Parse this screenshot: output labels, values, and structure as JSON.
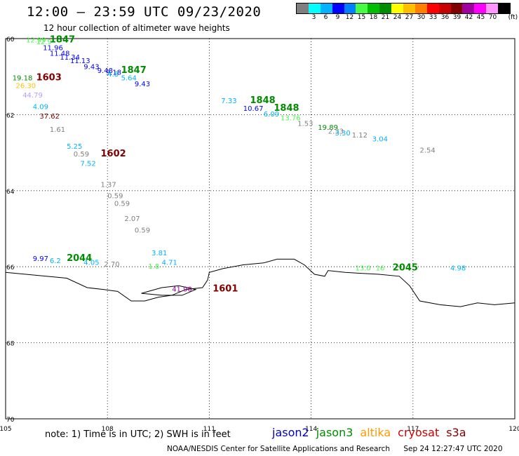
{
  "header": {
    "title": "12:00 – 23:59 UTC 09/23/2020",
    "subtitle": "12 hour collection of altimeter wave heights"
  },
  "legend": {
    "unit": "(ft)",
    "colors": [
      "#7f7f7f",
      "#00ffff",
      "#00b2ff",
      "#0000ff",
      "#007fff",
      "#46fa46",
      "#00bf00",
      "#008c00",
      "#ffff00",
      "#ffbf00",
      "#ff8000",
      "#ff0000",
      "#c80000",
      "#800000",
      "#a000a0",
      "#ff00ff",
      "#ff96ff",
      "#000000"
    ],
    "labels": [
      "3",
      "6",
      "9",
      "12",
      "15",
      "18",
      "21",
      "24",
      "27",
      "30",
      "33",
      "36",
      "39",
      "42",
      "45",
      "70"
    ]
  },
  "axes": {
    "x_ticks": [
      "105",
      "108",
      "111",
      "114",
      "117",
      "120"
    ],
    "y_ticks": [
      "60",
      "62",
      "64",
      "66",
      "68",
      "70"
    ]
  },
  "observations": [
    {
      "text": "12.99",
      "lon": 105.6,
      "lat": 60.1,
      "color": "#46fa46"
    },
    {
      "text": "12.9",
      "lon": 105.9,
      "lat": 60.15,
      "color": "#46fa46"
    },
    {
      "text": "1847",
      "lon": 106.3,
      "lat": 60.1,
      "color": "#008c00",
      "tag": true
    },
    {
      "text": "11.96",
      "lon": 106.1,
      "lat": 60.3,
      "color": "#0000ff"
    },
    {
      "text": "11.48",
      "lon": 106.3,
      "lat": 60.45,
      "color": "#0000ff"
    },
    {
      "text": "11.34",
      "lon": 106.6,
      "lat": 60.55,
      "color": "#0000ff"
    },
    {
      "text": "11.13",
      "lon": 106.9,
      "lat": 60.65,
      "color": "#0000ff"
    },
    {
      "text": "9.43",
      "lon": 107.3,
      "lat": 60.8,
      "color": "#0000ff"
    },
    {
      "text": "9.48",
      "lon": 107.7,
      "lat": 60.9,
      "color": "#0000ff"
    },
    {
      "text": "9.18",
      "lon": 107.95,
      "lat": 60.95,
      "color": "#0000ff"
    },
    {
      "text": "1847",
      "lon": 108.4,
      "lat": 60.9,
      "color": "#008c00",
      "tag": true
    },
    {
      "text": "4.8",
      "lon": 108.0,
      "lat": 61.0,
      "color": "#00b2ff"
    },
    {
      "text": "5.64",
      "lon": 108.4,
      "lat": 61.1,
      "color": "#00b2ff"
    },
    {
      "text": "9.43",
      "lon": 108.8,
      "lat": 61.25,
      "color": "#0000ff"
    },
    {
      "text": "19.18",
      "lon": 105.2,
      "lat": 61.1,
      "color": "#008c00"
    },
    {
      "text": "1603",
      "lon": 105.9,
      "lat": 61.1,
      "color": "#800000",
      "tag": true
    },
    {
      "text": "26.30",
      "lon": 105.3,
      "lat": 61.3,
      "color": "#ffbf00"
    },
    {
      "text": "44.79",
      "lon": 105.5,
      "lat": 61.55,
      "color": "#b0a0ff"
    },
    {
      "text": "4.09",
      "lon": 105.8,
      "lat": 61.85,
      "color": "#00b2ff"
    },
    {
      "text": "37.62",
      "lon": 106.0,
      "lat": 62.1,
      "color": "#800000"
    },
    {
      "text": "1.61",
      "lon": 106.3,
      "lat": 62.45,
      "color": "#7f7f7f"
    },
    {
      "text": "7.33",
      "lon": 111.35,
      "lat": 61.7,
      "color": "#00b2ff"
    },
    {
      "text": "1848",
      "lon": 112.2,
      "lat": 61.7,
      "color": "#008c00",
      "tag": true
    },
    {
      "text": "10.67",
      "lon": 112.0,
      "lat": 61.9,
      "color": "#0000ff"
    },
    {
      "text": "1848",
      "lon": 112.9,
      "lat": 61.9,
      "color": "#008c00",
      "tag": true
    },
    {
      "text": "6.09",
      "lon": 112.6,
      "lat": 62.05,
      "color": "#00b2ff"
    },
    {
      "text": "13.76",
      "lon": 113.1,
      "lat": 62.15,
      "color": "#46fa46"
    },
    {
      "text": "1.53",
      "lon": 113.6,
      "lat": 62.3,
      "color": "#7f7f7f"
    },
    {
      "text": "19.89",
      "lon": 114.2,
      "lat": 62.4,
      "color": "#008c00"
    },
    {
      "text": "2.33",
      "lon": 114.5,
      "lat": 62.5,
      "color": "#7f7f7f"
    },
    {
      "text": "3.30",
      "lon": 114.7,
      "lat": 62.55,
      "color": "#00b2ff"
    },
    {
      "text": "1.12",
      "lon": 115.2,
      "lat": 62.6,
      "color": "#7f7f7f"
    },
    {
      "text": "3.04",
      "lon": 115.8,
      "lat": 62.7,
      "color": "#00b2ff"
    },
    {
      "text": "2.54",
      "lon": 117.2,
      "lat": 63.0,
      "color": "#7f7f7f"
    },
    {
      "text": "5.25",
      "lon": 106.8,
      "lat": 62.9,
      "color": "#00b2ff"
    },
    {
      "text": "0.59",
      "lon": 107.0,
      "lat": 63.1,
      "color": "#7f7f7f"
    },
    {
      "text": "1602",
      "lon": 107.8,
      "lat": 63.1,
      "color": "#800000",
      "tag": true
    },
    {
      "text": "7.52",
      "lon": 107.2,
      "lat": 63.35,
      "color": "#00b2ff"
    },
    {
      "text": "1.37",
      "lon": 107.8,
      "lat": 63.9,
      "color": "#7f7f7f"
    },
    {
      "text": "0.59",
      "lon": 108.0,
      "lat": 64.2,
      "color": "#7f7f7f"
    },
    {
      "text": "0.59",
      "lon": 108.2,
      "lat": 64.4,
      "color": "#7f7f7f"
    },
    {
      "text": "2.07",
      "lon": 108.5,
      "lat": 64.8,
      "color": "#7f7f7f"
    },
    {
      "text": "0.59",
      "lon": 108.8,
      "lat": 65.1,
      "color": "#7f7f7f"
    },
    {
      "text": "9.97",
      "lon": 105.8,
      "lat": 65.85,
      "color": "#0000ff"
    },
    {
      "text": "6.2",
      "lon": 106.3,
      "lat": 65.9,
      "color": "#00b2ff"
    },
    {
      "text": "2044",
      "lon": 106.8,
      "lat": 65.85,
      "color": "#008c00",
      "tag": true
    },
    {
      "text": "4.05",
      "lon": 107.3,
      "lat": 65.95,
      "color": "#00b2ff"
    },
    {
      "text": "2.70",
      "lon": 107.9,
      "lat": 66.0,
      "color": "#7f7f7f"
    },
    {
      "text": "3.81",
      "lon": 109.3,
      "lat": 65.7,
      "color": "#00b2ff"
    },
    {
      "text": "4.71",
      "lon": 109.6,
      "lat": 65.95,
      "color": "#00b2ff"
    },
    {
      "text": "1.8",
      "lon": 109.2,
      "lat": 66.05,
      "color": "#46fa46"
    },
    {
      "text": "41.90",
      "lon": 109.9,
      "lat": 66.65,
      "color": "#a000a0"
    },
    {
      "text": "1601",
      "lon": 111.1,
      "lat": 66.65,
      "color": "#800000",
      "tag": true
    },
    {
      "text": "13.0",
      "lon": 115.3,
      "lat": 66.1,
      "color": "#46fa46"
    },
    {
      "text": "16",
      "lon": 115.9,
      "lat": 66.1,
      "color": "#46fa46"
    },
    {
      "text": "2045",
      "lon": 116.4,
      "lat": 66.1,
      "color": "#008c00",
      "tag": true
    },
    {
      "text": "4.98",
      "lon": 118.1,
      "lat": 66.1,
      "color": "#00b2ff"
    }
  ],
  "coastline": [
    [
      105.0,
      66.15
    ],
    [
      105.6,
      66.2
    ],
    [
      106.2,
      66.25
    ],
    [
      106.8,
      66.3
    ],
    [
      107.4,
      66.55
    ],
    [
      107.9,
      66.6
    ],
    [
      108.3,
      66.65
    ],
    [
      108.7,
      66.9
    ],
    [
      109.1,
      66.9
    ],
    [
      109.5,
      66.8
    ],
    [
      109.9,
      66.75
    ],
    [
      110.3,
      66.6
    ],
    [
      110.8,
      66.55
    ],
    [
      110.95,
      66.35
    ],
    [
      111.0,
      66.15
    ],
    [
      111.4,
      66.05
    ],
    [
      112.0,
      65.95
    ],
    [
      112.6,
      65.9
    ],
    [
      113.0,
      65.8
    ],
    [
      113.5,
      65.8
    ],
    [
      113.8,
      65.95
    ],
    [
      114.1,
      66.2
    ],
    [
      114.4,
      66.25
    ],
    [
      114.5,
      66.1
    ],
    [
      115.0,
      66.15
    ],
    [
      116.0,
      66.2
    ],
    [
      116.6,
      66.25
    ],
    [
      116.9,
      66.5
    ],
    [
      117.2,
      66.9
    ],
    [
      117.8,
      67.0
    ],
    [
      118.4,
      67.05
    ],
    [
      118.9,
      66.95
    ],
    [
      119.4,
      67.0
    ],
    [
      120.0,
      66.95
    ]
  ],
  "island": [
    [
      109.0,
      66.7
    ],
    [
      109.6,
      66.55
    ],
    [
      110.1,
      66.5
    ],
    [
      110.6,
      66.6
    ],
    [
      110.2,
      66.75
    ],
    [
      109.6,
      66.75
    ],
    [
      109.0,
      66.7
    ]
  ],
  "notes": {
    "note_text": "note: 1) Time is in UTC; 2) SWH is in feet",
    "satellites": [
      {
        "name": "jason2",
        "color": "#0000cc"
      },
      {
        "name": "jason3",
        "color": "#008c00"
      },
      {
        "name": "altika",
        "color": "#ff9900"
      },
      {
        "name": "cryosat",
        "color": "#cc0000"
      },
      {
        "name": "s3a",
        "color": "#800000"
      }
    ],
    "footer_left": "NOAA/NESDIS Center for Satellite Applications and Research",
    "footer_right": "Sep 24 12:27:47 UTC 2020"
  }
}
